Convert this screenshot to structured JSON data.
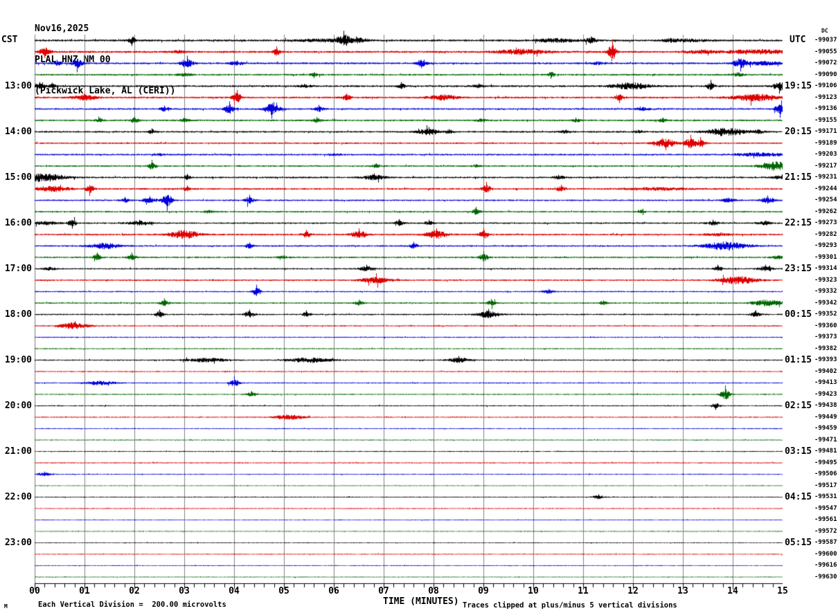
{
  "header": {
    "date": "Nov16,2025",
    "station_line": "PLAL HNZ NM 00",
    "location_line": "(Pickwick Lake, AL (CERI))"
  },
  "axes": {
    "left_label": "CST",
    "right_label": "UTC",
    "dc_label": "DC",
    "x_title": "TIME (MINUTES)",
    "minute_labels": [
      "00",
      "01",
      "02",
      "03",
      "04",
      "05",
      "06",
      "07",
      "08",
      "09",
      "10",
      "11",
      "12",
      "13",
      "14",
      "15"
    ]
  },
  "footer": {
    "scale_note": "Each Vertical Division =  200.00 microvolts",
    "clip_note": "Traces clipped at plus/minus 5 vertical divisions",
    "mark": "M"
  },
  "chart_data": {
    "type": "line",
    "subtype": "helicorder-seismogram",
    "title": "PLAL HNZ NM 00 (Pickwick Lake, AL (CERI)) Nov16,2025",
    "xlabel": "TIME (MINUTES)",
    "x_range": [
      0,
      15
    ],
    "minutes_per_row": 15,
    "division_microvolts": 200.0,
    "clip_divisions": 5,
    "grid": true,
    "colors": {
      "trace_cycle": [
        "#000000",
        "#dd0000",
        "#0000dd",
        "#006600"
      ],
      "grid": "#808080",
      "axis": "#000000",
      "background": "#ffffff"
    },
    "rows": [
      {
        "dc": "-99037",
        "cst": "",
        "utc": ""
      },
      {
        "dc": "-99055",
        "cst": "",
        "utc": ""
      },
      {
        "dc": "-99072",
        "cst": "",
        "utc": ""
      },
      {
        "dc": "-99090",
        "cst": "",
        "utc": ""
      },
      {
        "dc": "-99106",
        "cst": "13:00",
        "utc": "19:15"
      },
      {
        "dc": "-99123",
        "cst": "",
        "utc": ""
      },
      {
        "dc": "-99136",
        "cst": "",
        "utc": ""
      },
      {
        "dc": "-99155",
        "cst": "",
        "utc": ""
      },
      {
        "dc": "-99171",
        "cst": "14:00",
        "utc": "20:15"
      },
      {
        "dc": "-99189",
        "cst": "",
        "utc": ""
      },
      {
        "dc": "-99203",
        "cst": "",
        "utc": ""
      },
      {
        "dc": "-99217",
        "cst": "",
        "utc": ""
      },
      {
        "dc": "-99231",
        "cst": "15:00",
        "utc": "21:15"
      },
      {
        "dc": "-99244",
        "cst": "",
        "utc": ""
      },
      {
        "dc": "-99254",
        "cst": "",
        "utc": ""
      },
      {
        "dc": "-99262",
        "cst": "",
        "utc": ""
      },
      {
        "dc": "-99273",
        "cst": "16:00",
        "utc": "22:15"
      },
      {
        "dc": "-99282",
        "cst": "",
        "utc": ""
      },
      {
        "dc": "-99293",
        "cst": "",
        "utc": ""
      },
      {
        "dc": "-99301",
        "cst": "",
        "utc": ""
      },
      {
        "dc": "-99314",
        "cst": "17:00",
        "utc": "23:15"
      },
      {
        "dc": "-99323",
        "cst": "",
        "utc": ""
      },
      {
        "dc": "-99332",
        "cst": "",
        "utc": ""
      },
      {
        "dc": "-99342",
        "cst": "",
        "utc": ""
      },
      {
        "dc": "-99352",
        "cst": "18:00",
        "utc": "00:15"
      },
      {
        "dc": "-99360",
        "cst": "",
        "utc": ""
      },
      {
        "dc": "-99373",
        "cst": "",
        "utc": ""
      },
      {
        "dc": "-99382",
        "cst": "",
        "utc": ""
      },
      {
        "dc": "-99393",
        "cst": "19:00",
        "utc": "01:15"
      },
      {
        "dc": "-99402",
        "cst": "",
        "utc": ""
      },
      {
        "dc": "-99413",
        "cst": "",
        "utc": ""
      },
      {
        "dc": "-99423",
        "cst": "",
        "utc": ""
      },
      {
        "dc": "-99438",
        "cst": "20:00",
        "utc": "02:15"
      },
      {
        "dc": "-99449",
        "cst": "",
        "utc": ""
      },
      {
        "dc": "-99459",
        "cst": "",
        "utc": ""
      },
      {
        "dc": "-99471",
        "cst": "",
        "utc": ""
      },
      {
        "dc": "-99481",
        "cst": "21:00",
        "utc": "03:15"
      },
      {
        "dc": "-99495",
        "cst": "",
        "utc": ""
      },
      {
        "dc": "-99506",
        "cst": "",
        "utc": ""
      },
      {
        "dc": "-99517",
        "cst": "",
        "utc": ""
      },
      {
        "dc": "-99531",
        "cst": "22:00",
        "utc": "04:15"
      },
      {
        "dc": "-99547",
        "cst": "",
        "utc": ""
      },
      {
        "dc": "-99561",
        "cst": "",
        "utc": ""
      },
      {
        "dc": "-99572",
        "cst": "",
        "utc": ""
      },
      {
        "dc": "-99587",
        "cst": "23:00",
        "utc": "05:15"
      },
      {
        "dc": "-99600",
        "cst": "",
        "utc": ""
      },
      {
        "dc": "-99616",
        "cst": "",
        "utc": ""
      },
      {
        "dc": "-99630",
        "cst": "",
        "utc": ""
      }
    ],
    "noise_levels": [
      1.4,
      1.4,
      1.3,
      1.2,
      1.3,
      1.3,
      1.2,
      1.2,
      1.2,
      1.1,
      1.2,
      1.1,
      1.2,
      1.2,
      1.1,
      1.1,
      1.1,
      1.2,
      1.1,
      1.1,
      1.0,
      1.1,
      0.9,
      1.0,
      1.0,
      0.9,
      0.8,
      0.8,
      0.9,
      0.8,
      0.8,
      0.8,
      0.8,
      0.8,
      0.7,
      0.7,
      0.7,
      0.8,
      0.7,
      0.6,
      0.7,
      0.7,
      0.6,
      0.6,
      0.6,
      0.7,
      0.6,
      0.6
    ],
    "events": [
      [
        0,
        1.95,
        8,
        0.05,
        -1
      ],
      [
        0,
        5.8,
        3,
        0.4,
        1
      ],
      [
        0,
        6.2,
        14,
        0.12,
        1
      ],
      [
        0,
        6.45,
        6,
        0.15,
        1
      ],
      [
        0,
        10.45,
        4,
        0.3,
        1
      ],
      [
        0,
        11.15,
        6,
        0.08,
        1
      ],
      [
        0,
        12.75,
        4,
        0.1,
        1
      ],
      [
        0,
        13.05,
        3,
        0.3,
        1
      ],
      [
        1,
        0.2,
        9,
        0.08,
        -1
      ],
      [
        1,
        2.9,
        3,
        0.1,
        1
      ],
      [
        1,
        4.85,
        8,
        0.05,
        1
      ],
      [
        1,
        9.75,
        6,
        0.35,
        -1
      ],
      [
        1,
        11.58,
        18,
        0.06,
        1
      ],
      [
        1,
        13.4,
        4,
        0.25,
        1
      ],
      [
        1,
        14.5,
        5,
        0.45,
        1
      ],
      [
        2,
        0.45,
        5,
        0.06,
        1
      ],
      [
        2,
        0.85,
        11,
        0.07,
        -1
      ],
      [
        2,
        3.05,
        11,
        0.08,
        1
      ],
      [
        2,
        4.05,
        4,
        0.1,
        1
      ],
      [
        2,
        7.75,
        7,
        0.08,
        -1
      ],
      [
        2,
        11.3,
        3,
        0.1,
        1
      ],
      [
        2,
        14.15,
        12,
        0.1,
        -1
      ],
      [
        2,
        14.6,
        4,
        0.3,
        1
      ],
      [
        3,
        3.0,
        3,
        0.1,
        1
      ],
      [
        3,
        5.6,
        5,
        0.06,
        -1
      ],
      [
        3,
        10.35,
        6,
        0.05,
        -1
      ],
      [
        3,
        14.1,
        4,
        0.08,
        1
      ],
      [
        4,
        0.1,
        6,
        0.08,
        1
      ],
      [
        4,
        0.35,
        5,
        0.05,
        1
      ],
      [
        4,
        5.4,
        3,
        0.1,
        1
      ],
      [
        4,
        7.35,
        6,
        0.05,
        1
      ],
      [
        4,
        8.9,
        4,
        0.08,
        1
      ],
      [
        4,
        11.95,
        8,
        0.25,
        1
      ],
      [
        4,
        13.55,
        9,
        0.05,
        1
      ],
      [
        4,
        14.93,
        11,
        0.08,
        -1
      ],
      [
        5,
        1.0,
        7,
        0.15,
        1
      ],
      [
        5,
        4.05,
        11,
        0.06,
        1
      ],
      [
        5,
        6.25,
        6,
        0.06,
        1
      ],
      [
        5,
        8.2,
        6,
        0.2,
        1
      ],
      [
        5,
        11.72,
        8,
        0.06,
        -1
      ],
      [
        5,
        14.45,
        8,
        0.3,
        1
      ],
      [
        6,
        2.6,
        5,
        0.06,
        1
      ],
      [
        6,
        3.9,
        11,
        0.07,
        1
      ],
      [
        6,
        4.75,
        14,
        0.1,
        -1
      ],
      [
        6,
        5.7,
        6,
        0.06,
        1
      ],
      [
        6,
        12.2,
        3,
        0.1,
        1
      ],
      [
        6,
        14.95,
        13,
        0.07,
        -1
      ],
      [
        7,
        1.3,
        4,
        0.06,
        1
      ],
      [
        7,
        2.0,
        6,
        0.06,
        1
      ],
      [
        7,
        3.0,
        4,
        0.06,
        1
      ],
      [
        7,
        5.65,
        5,
        0.06,
        1
      ],
      [
        7,
        8.95,
        3,
        0.08,
        1
      ],
      [
        7,
        10.85,
        4,
        0.06,
        1
      ],
      [
        7,
        12.6,
        4,
        0.06,
        1
      ],
      [
        8,
        2.35,
        5,
        0.05,
        1
      ],
      [
        8,
        7.9,
        7,
        0.15,
        1
      ],
      [
        8,
        8.3,
        4,
        0.08,
        1
      ],
      [
        8,
        10.65,
        3,
        0.08,
        1
      ],
      [
        8,
        12.1,
        3,
        0.06,
        1
      ],
      [
        8,
        13.85,
        10,
        0.25,
        1
      ],
      [
        8,
        14.5,
        4,
        0.1,
        1
      ],
      [
        9,
        12.65,
        10,
        0.15,
        -1
      ],
      [
        9,
        13.15,
        12,
        0.1,
        1
      ],
      [
        9,
        13.35,
        9,
        0.06,
        1
      ],
      [
        10,
        2.5,
        2,
        0.1,
        1
      ],
      [
        10,
        6.0,
        2,
        0.1,
        1
      ],
      [
        10,
        14.55,
        4,
        0.3,
        1
      ],
      [
        11,
        2.35,
        9,
        0.05,
        1
      ],
      [
        11,
        6.85,
        4,
        0.06,
        1
      ],
      [
        11,
        8.85,
        3,
        0.06,
        1
      ],
      [
        11,
        14.85,
        11,
        0.2,
        1
      ],
      [
        12,
        0.15,
        10,
        0.3,
        1
      ],
      [
        12,
        3.05,
        5,
        0.05,
        1
      ],
      [
        12,
        6.8,
        6,
        0.15,
        1
      ],
      [
        12,
        10.5,
        4,
        0.08,
        1
      ],
      [
        12,
        14.9,
        3,
        0.1,
        1
      ],
      [
        13,
        0.35,
        6,
        0.25,
        1
      ],
      [
        13,
        1.1,
        10,
        0.06,
        -1
      ],
      [
        13,
        3.05,
        5,
        0.05,
        1
      ],
      [
        13,
        9.05,
        10,
        0.06,
        1
      ],
      [
        13,
        10.55,
        6,
        0.06,
        1
      ],
      [
        13,
        12.5,
        3,
        0.4,
        1
      ],
      [
        14,
        1.8,
        5,
        0.06,
        1
      ],
      [
        14,
        2.3,
        6,
        0.1,
        1
      ],
      [
        14,
        2.65,
        15,
        0.07,
        -1
      ],
      [
        14,
        4.3,
        8,
        0.06,
        1
      ],
      [
        14,
        13.9,
        4,
        0.1,
        1
      ],
      [
        14,
        14.7,
        7,
        0.1,
        1
      ],
      [
        15,
        3.5,
        3,
        0.08,
        1
      ],
      [
        15,
        8.85,
        7,
        0.06,
        1
      ],
      [
        15,
        12.15,
        3,
        0.06,
        1
      ],
      [
        16,
        0.2,
        4,
        0.2,
        1
      ],
      [
        16,
        0.75,
        8,
        0.06,
        -1
      ],
      [
        16,
        2.1,
        5,
        0.15,
        1
      ],
      [
        16,
        7.3,
        6,
        0.06,
        1
      ],
      [
        16,
        7.9,
        5,
        0.06,
        1
      ],
      [
        16,
        13.6,
        5,
        0.08,
        1
      ],
      [
        16,
        14.65,
        4,
        0.1,
        1
      ],
      [
        17,
        3.0,
        10,
        0.2,
        1
      ],
      [
        17,
        5.45,
        7,
        0.06,
        1
      ],
      [
        17,
        6.5,
        9,
        0.1,
        1
      ],
      [
        17,
        8.05,
        9,
        0.15,
        1
      ],
      [
        17,
        9.0,
        10,
        0.06,
        1
      ],
      [
        17,
        13.7,
        3,
        0.2,
        1
      ],
      [
        18,
        1.4,
        7,
        0.2,
        1
      ],
      [
        18,
        4.3,
        5,
        0.06,
        1
      ],
      [
        18,
        7.6,
        6,
        0.06,
        1
      ],
      [
        18,
        13.85,
        10,
        0.3,
        -1
      ],
      [
        19,
        1.25,
        7,
        0.06,
        1
      ],
      [
        19,
        1.95,
        7,
        0.06,
        1
      ],
      [
        19,
        5.0,
        3,
        0.08,
        1
      ],
      [
        19,
        9.0,
        9,
        0.06,
        1
      ],
      [
        19,
        14.9,
        3,
        0.1,
        1
      ],
      [
        20,
        0.3,
        3,
        0.1,
        1
      ],
      [
        20,
        6.65,
        6,
        0.1,
        1
      ],
      [
        20,
        13.7,
        6,
        0.06,
        1
      ],
      [
        20,
        14.65,
        6,
        0.1,
        1
      ],
      [
        21,
        6.85,
        7,
        0.2,
        1
      ],
      [
        21,
        14.1,
        9,
        0.25,
        -1
      ],
      [
        22,
        4.45,
        10,
        0.06,
        1
      ],
      [
        22,
        10.3,
        4,
        0.08,
        1
      ],
      [
        23,
        2.6,
        7,
        0.06,
        1
      ],
      [
        23,
        6.5,
        5,
        0.06,
        1
      ],
      [
        23,
        9.15,
        6,
        0.06,
        1
      ],
      [
        23,
        11.4,
        4,
        0.06,
        1
      ],
      [
        23,
        14.7,
        8,
        0.2,
        1
      ],
      [
        24,
        2.5,
        7,
        0.06,
        1
      ],
      [
        24,
        4.3,
        7,
        0.08,
        1
      ],
      [
        24,
        5.45,
        6,
        0.06,
        1
      ],
      [
        24,
        9.1,
        8,
        0.15,
        1
      ],
      [
        24,
        14.45,
        5,
        0.08,
        1
      ],
      [
        25,
        0.78,
        8,
        0.2,
        1
      ],
      [
        28,
        3.45,
        5,
        0.3,
        1
      ],
      [
        28,
        5.5,
        6,
        0.3,
        1
      ],
      [
        28,
        8.5,
        6,
        0.15,
        1
      ],
      [
        30,
        1.3,
        5,
        0.2,
        1
      ],
      [
        30,
        4.0,
        8,
        0.07,
        1
      ],
      [
        31,
        4.35,
        5,
        0.08,
        1
      ],
      [
        31,
        13.85,
        13,
        0.07,
        1
      ],
      [
        32,
        13.65,
        6,
        0.06,
        -1
      ],
      [
        33,
        5.1,
        6,
        0.2,
        1
      ],
      [
        38,
        0.2,
        4,
        0.1,
        1
      ],
      [
        40,
        11.3,
        4,
        0.08,
        1
      ]
    ]
  }
}
